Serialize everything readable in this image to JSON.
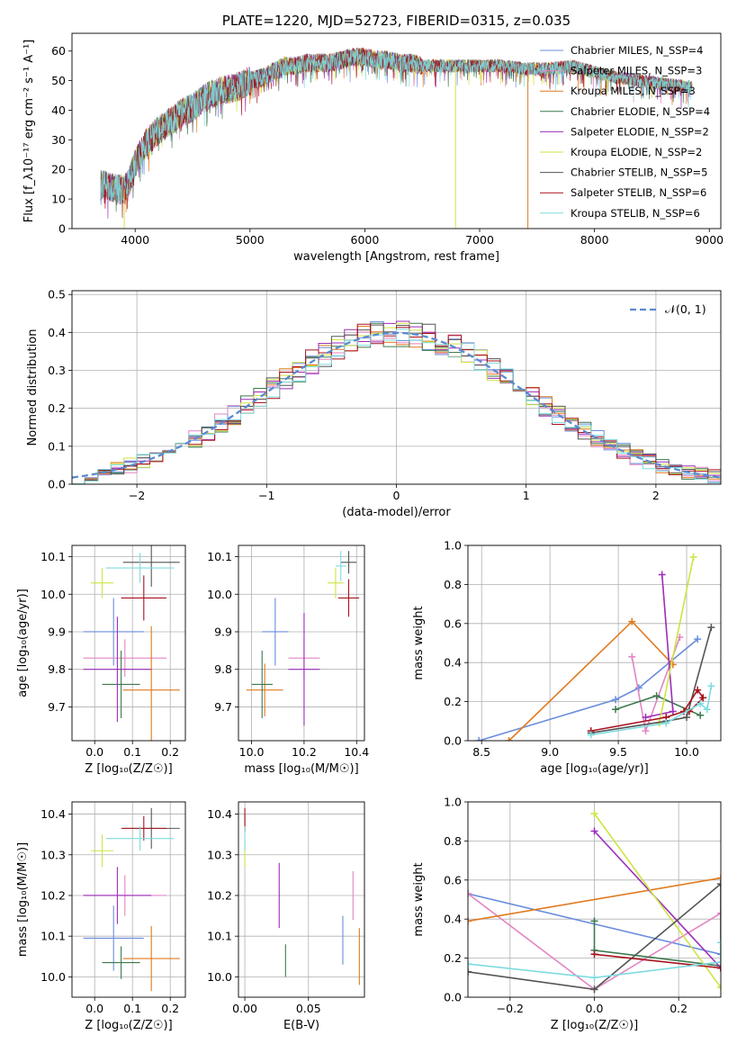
{
  "colors": [
    "#6a8ddc",
    "#e285c4",
    "#e07a1f",
    "#3d7a4e",
    "#9b2eb8",
    "#cfe342",
    "#555555",
    "#a8121e",
    "#7ddbe0"
  ],
  "chart_data": [
    {
      "id": "spectrum",
      "type": "line",
      "title": "PLATE=1220, MJD=52723, FIBERID=0315, z=0.035",
      "xlabel": "wavelength [Angstrom, rest frame]",
      "ylabel": "Flux [f_λ10⁻¹⁷ erg cm⁻² s⁻¹ A⁻¹]",
      "xlim": [
        3450,
        9100
      ],
      "ylim": [
        0,
        66
      ],
      "xticks": [
        4000,
        5000,
        6000,
        7000,
        8000,
        9000
      ],
      "yticks": [
        0,
        10,
        20,
        30,
        40,
        50,
        60
      ],
      "continuum_x": [
        3700,
        3800,
        3900,
        3950,
        4000,
        4100,
        4200,
        4300,
        4400,
        4500,
        4600,
        4700,
        4800,
        4900,
        5000,
        5100,
        5200,
        5300,
        5400,
        5500,
        5600,
        5700,
        5800,
        5900,
        6000,
        6100,
        6200,
        6300,
        6400,
        6500,
        6600,
        6700,
        6800,
        6900,
        7000,
        7200,
        7400,
        7600,
        7800,
        8000,
        8200,
        8400,
        8600,
        8800,
        8850
      ],
      "continuum_y": [
        15,
        14,
        13,
        16,
        22,
        29,
        33,
        36,
        39,
        41,
        44,
        46,
        47,
        48,
        50,
        51,
        53,
        55,
        55,
        56,
        56,
        56,
        57,
        58,
        58,
        57,
        57,
        56,
        56,
        55,
        55,
        55,
        55,
        55,
        55,
        55,
        54,
        54,
        55,
        53,
        51,
        50,
        49,
        48,
        48
      ],
      "legend": [
        {
          "label": "Chabrier MILES, N_SSP=4"
        },
        {
          "label": "Salpeter MILES, N_SSP=3"
        },
        {
          "label": "Kroupa MILES, N_SSP=3"
        },
        {
          "label": "Chabrier ELODIE, N_SSP=4"
        },
        {
          "label": "Salpeter ELODIE, N_SSP=2"
        },
        {
          "label": "Kroupa ELODIE, N_SSP=2"
        },
        {
          "label": "Chabrier STELIB, N_SSP=5"
        },
        {
          "label": "Salpeter STELIB, N_SSP=6"
        },
        {
          "label": "Kroupa STELIB, N_SSP=6"
        }
      ]
    },
    {
      "id": "residuals",
      "type": "step",
      "xlabel": "(data-model)/error",
      "ylabel": "Normed distribution",
      "xlim": [
        -2.5,
        2.5
      ],
      "ylim": [
        0,
        0.51
      ],
      "xticks": [
        -2,
        -1,
        0,
        1,
        2
      ],
      "yticks": [
        0.0,
        0.1,
        0.2,
        0.3,
        0.4,
        0.5
      ],
      "legend": "𝒩(0, 1)",
      "bin_width": 0.1
    },
    {
      "id": "z-age",
      "type": "errorbar",
      "xlabel": "Z [log₁₀(Z/Z☉)]",
      "ylabel": "age  [log₁₀(age/yr)]",
      "xlim": [
        -0.06,
        0.24
      ],
      "ylim": [
        9.61,
        10.13
      ],
      "xticks": [
        0.0,
        0.1,
        0.2
      ],
      "yticks": [
        9.7,
        9.8,
        9.9,
        10.0,
        10.1
      ],
      "points": [
        {
          "x": 0.05,
          "y": 9.9,
          "xerr": 0.08,
          "yerr": 0.09
        },
        {
          "x": 0.08,
          "y": 9.83,
          "xerr": 0.11,
          "yerr": 0.05
        },
        {
          "x": 0.15,
          "y": 9.745,
          "xerr": 0.075,
          "yerr": 0.17
        },
        {
          "x": 0.07,
          "y": 9.76,
          "xerr": 0.05,
          "yerr": 0.09
        },
        {
          "x": 0.06,
          "y": 9.8,
          "xerr": 0.09,
          "yerr": 0.14
        },
        {
          "x": 0.02,
          "y": 10.03,
          "xerr": 0.03,
          "yerr": 0.04
        },
        {
          "x": 0.15,
          "y": 10.085,
          "xerr": 0.075,
          "yerr": 0.065
        },
        {
          "x": 0.13,
          "y": 9.99,
          "xerr": 0.06,
          "yerr": 0.06
        },
        {
          "x": 0.12,
          "y": 10.07,
          "xerr": 0.09,
          "yerr": 0.04
        }
      ]
    },
    {
      "id": "mass-age",
      "type": "errorbar",
      "xlabel": "mass [log₁₀(M/M☉)]",
      "xlim": [
        9.95,
        10.43
      ],
      "ylim": [
        9.61,
        10.13
      ],
      "xticks": [
        10.0,
        10.2,
        10.4
      ],
      "yticks": [
        9.7,
        9.8,
        9.9,
        10.0,
        10.1
      ],
      "points": [
        {
          "x": 10.09,
          "y": 9.9,
          "xerr": 0.05,
          "yerr": 0.09
        },
        {
          "x": 10.2,
          "y": 9.83,
          "xerr": 0.06,
          "yerr": 0.05
        },
        {
          "x": 10.05,
          "y": 9.745,
          "xerr": 0.07,
          "yerr": 0.07
        },
        {
          "x": 10.04,
          "y": 9.76,
          "xerr": 0.04,
          "yerr": 0.09
        },
        {
          "x": 10.2,
          "y": 9.8,
          "xerr": 0.06,
          "yerr": 0.15
        },
        {
          "x": 10.32,
          "y": 10.03,
          "xerr": 0.03,
          "yerr": 0.04
        },
        {
          "x": 10.37,
          "y": 10.085,
          "xerr": 0.03,
          "yerr": 0.03
        },
        {
          "x": 10.37,
          "y": 9.99,
          "xerr": 0.04,
          "yerr": 0.05
        },
        {
          "x": 10.34,
          "y": 10.075,
          "xerr": 0.02,
          "yerr": 0.04
        }
      ]
    },
    {
      "id": "age-weight",
      "type": "line",
      "xlabel": "age  [log₁₀(age/yr)]",
      "ylabel": "mass weight",
      "xlim": [
        8.4,
        10.25
      ],
      "ylim": [
        0,
        1
      ],
      "xticks": [
        8.5,
        9.0,
        9.5,
        10.0
      ],
      "yticks": [
        0.0,
        0.2,
        0.4,
        0.6,
        0.8,
        1.0
      ],
      "series": [
        {
          "x": [
            8.48,
            9.48,
            9.65,
            10.08
          ],
          "y": [
            0.0,
            0.21,
            0.27,
            0.52
          ]
        },
        {
          "x": [
            9.6,
            9.7,
            9.95
          ],
          "y": [
            0.43,
            0.05,
            0.53
          ]
        },
        {
          "x": [
            8.7,
            9.6,
            9.9
          ],
          "y": [
            0.0,
            0.61,
            0.39
          ]
        },
        {
          "x": [
            9.48,
            9.78,
            10.1
          ],
          "y": [
            0.16,
            0.23,
            0.13
          ]
        },
        {
          "x": [
            9.7,
            9.9,
            9.82
          ],
          "y": [
            0.12,
            0.15,
            0.85
          ]
        },
        {
          "x": [
            9.8,
            10.05
          ],
          "y": [
            0.09,
            0.94
          ]
        },
        {
          "x": [
            9.3,
            9.85,
            10.0,
            10.18
          ],
          "y": [
            0.04,
            0.1,
            0.12,
            0.58
          ]
        },
        {
          "x": [
            9.3,
            9.85,
            9.98,
            10.08,
            10.12,
            10.02
          ],
          "y": [
            0.05,
            0.12,
            0.15,
            0.26,
            0.22,
            0.15
          ]
        },
        {
          "x": [
            9.3,
            9.85,
            10.1,
            10.15,
            10.18
          ],
          "y": [
            0.03,
            0.09,
            0.19,
            0.16,
            0.28
          ]
        }
      ]
    },
    {
      "id": "z-mass",
      "type": "errorbar",
      "xlabel": "Z [log₁₀(Z/Z☉)]",
      "ylabel": "mass [log₁₀(M/M☉)]",
      "xlim": [
        -0.06,
        0.24
      ],
      "ylim": [
        9.95,
        10.43
      ],
      "xticks": [
        0.0,
        0.1,
        0.2
      ],
      "yticks": [
        10.0,
        10.1,
        10.2,
        10.3,
        10.4
      ],
      "points": [
        {
          "x": 0.05,
          "y": 10.095,
          "xerr": 0.08,
          "yerr": 0.08
        },
        {
          "x": 0.08,
          "y": 10.2,
          "xerr": 0.11,
          "yerr": 0.05
        },
        {
          "x": 0.15,
          "y": 10.045,
          "xerr": 0.075,
          "yerr": 0.08
        },
        {
          "x": 0.07,
          "y": 10.035,
          "xerr": 0.05,
          "yerr": 0.04
        },
        {
          "x": 0.06,
          "y": 10.2,
          "xerr": 0.09,
          "yerr": 0.07
        },
        {
          "x": 0.02,
          "y": 10.31,
          "xerr": 0.03,
          "yerr": 0.04
        },
        {
          "x": 0.15,
          "y": 10.365,
          "xerr": 0.075,
          "yerr": 0.05
        },
        {
          "x": 0.13,
          "y": 10.365,
          "xerr": 0.06,
          "yerr": 0.03
        },
        {
          "x": 0.12,
          "y": 10.34,
          "xerr": 0.09,
          "yerr": 0.03
        }
      ]
    },
    {
      "id": "ebv-mass",
      "type": "errorbar",
      "xlabel": "E(B-V)",
      "xlim": [
        -0.005,
        0.094
      ],
      "ylim": [
        9.95,
        10.43
      ],
      "xticks": [
        0.0,
        0.05
      ],
      "yticks": [
        10.0,
        10.1,
        10.2,
        10.3,
        10.4
      ],
      "points": [
        {
          "x": 0.077,
          "y": 10.09,
          "yerr": 0.06
        },
        {
          "x": 0.085,
          "y": 10.2,
          "yerr": 0.06
        },
        {
          "x": 0.09,
          "y": 10.05,
          "yerr": 0.07
        },
        {
          "x": 0.032,
          "y": 10.04,
          "yerr": 0.04
        },
        {
          "x": 0.027,
          "y": 10.2,
          "yerr": 0.08
        },
        {
          "x": 0.0,
          "y": 10.3,
          "yerr": 0.03
        },
        {
          "x": 0.0,
          "y": 10.38,
          "yerr": 0.02
        },
        {
          "x": 0.0,
          "y": 10.385,
          "yerr": 0.03
        },
        {
          "x": 0.0,
          "y": 10.34,
          "yerr": 0.03
        }
      ]
    },
    {
      "id": "z-weight",
      "type": "line",
      "xlabel": "Z [log₁₀(Z/Z☉)]",
      "ylabel": "mass weight",
      "xlim": [
        -0.3,
        0.3
      ],
      "ylim": [
        0,
        1
      ],
      "xticks": [
        -0.2,
        0.0,
        0.2
      ],
      "yticks": [
        0.0,
        0.2,
        0.4,
        0.6,
        0.8,
        1.0
      ],
      "series": [
        {
          "x": [
            -0.3,
            0.3
          ],
          "y": [
            0.53,
            0.22
          ]
        },
        {
          "x": [
            -0.3,
            0.0,
            0.3
          ],
          "y": [
            0.53,
            0.04,
            0.43
          ]
        },
        {
          "x": [
            -0.3,
            0.3
          ],
          "y": [
            0.39,
            0.61
          ]
        },
        {
          "x": [
            0.0,
            0.0,
            0.3
          ],
          "y": [
            0.39,
            0.24,
            0.16
          ]
        },
        {
          "x": [
            0.0,
            0.3
          ],
          "y": [
            0.85,
            0.15
          ]
        },
        {
          "x": [
            0.0,
            0.3
          ],
          "y": [
            0.94,
            0.05
          ]
        },
        {
          "x": [
            -0.3,
            0.0,
            0.3,
            0.3
          ],
          "y": [
            0.13,
            0.04,
            0.58,
            0.15
          ]
        },
        {
          "x": [
            0.0,
            0.3,
            0.3
          ],
          "y": [
            0.22,
            0.15,
            0.15
          ]
        },
        {
          "x": [
            -0.3,
            0.0,
            0.3,
            0.3
          ],
          "y": [
            0.17,
            0.1,
            0.18,
            0.28
          ]
        }
      ]
    }
  ]
}
